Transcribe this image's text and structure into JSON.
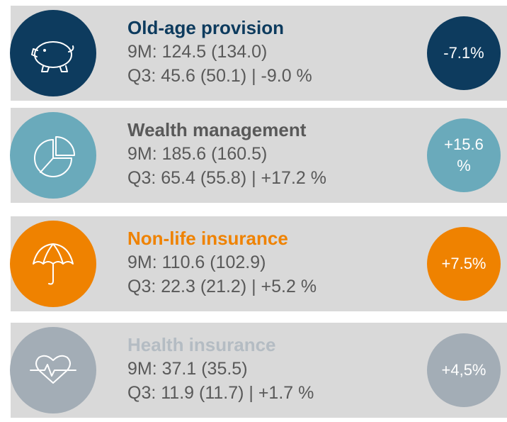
{
  "segments": [
    {
      "title": "Old-age provision",
      "line1": "9M: 124.5 (134.0)",
      "line2": "Q3: 45.6 (50.1) | -9.0 %",
      "badge": "-7.1%"
    },
    {
      "title": "Wealth management",
      "line1": "9M: 185.6 (160.5)",
      "line2": "Q3: 65.4 (55.8) | +17.2 %",
      "badge": "+15.6 %"
    },
    {
      "title": "Non-life insurance",
      "line1": "9M: 110.6 (102.9)",
      "line2": "Q3: 22.3 (21.2) | +5.2 %",
      "badge": "+7.5%"
    },
    {
      "title": "Health insurance",
      "line1": "9M: 37.1 (35.5)",
      "line2": "Q3: 11.9 (11.7) | +1.7 %",
      "badge": "+4,5%"
    }
  ]
}
